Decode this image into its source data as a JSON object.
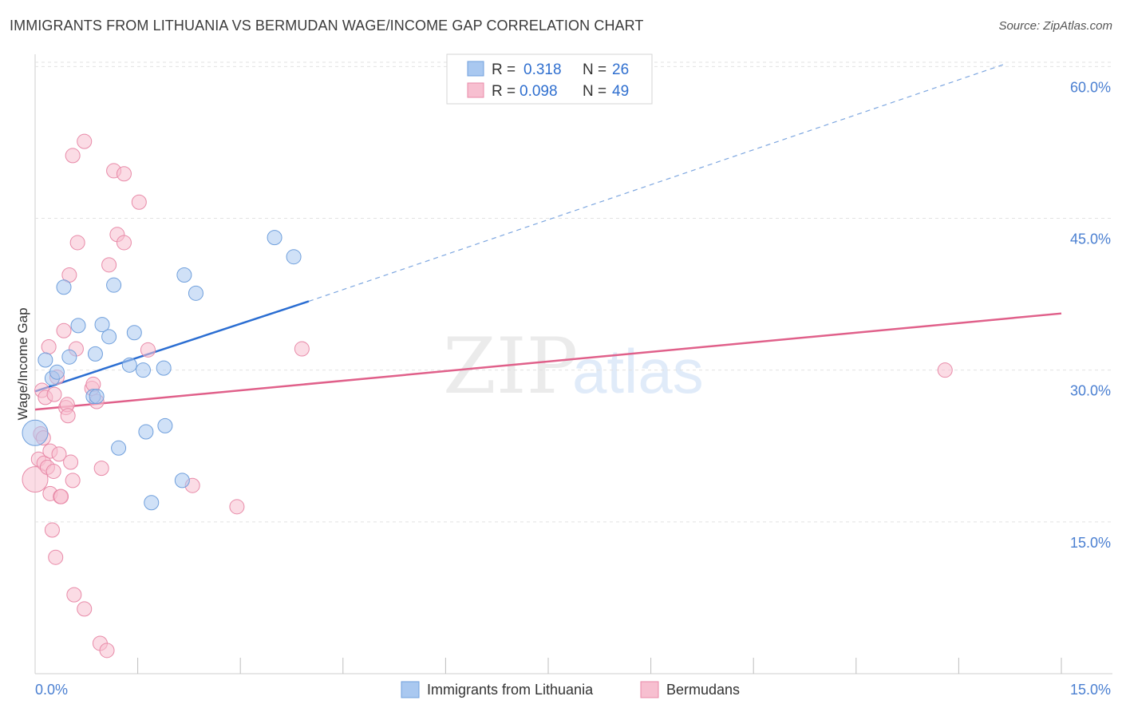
{
  "title": "IMMIGRANTS FROM LITHUANIA VS BERMUDAN WAGE/INCOME GAP CORRELATION CHART",
  "source": "Source: ZipAtlas.com",
  "chart_data": {
    "type": "scatter",
    "title": "IMMIGRANTS FROM LITHUANIA VS BERMUDAN WAGE/INCOME GAP CORRELATION CHART",
    "xlabel": "",
    "ylabel": "Wage/Income Gap",
    "xlim": [
      0,
      15
    ],
    "ylim": [
      0,
      62
    ],
    "x_tick_labels": [
      "0.0%",
      "15.0%"
    ],
    "y_ticks": [
      15,
      30,
      45,
      60
    ],
    "y_tick_labels": [
      "15.0%",
      "30.0%",
      "45.0%",
      "60.0%"
    ],
    "legend": {
      "entries": [
        {
          "r_label": "R =",
          "r": "0.318",
          "n_label": "N =",
          "n": "26"
        },
        {
          "r_label": "R =",
          "r": "0.098",
          "n_label": "N =",
          "n": "49"
        }
      ]
    },
    "series": [
      {
        "name": "Immigrants from Lithuania",
        "color": "#a9c8f0",
        "stroke": "#6f9fdc",
        "line_color": "#2b6ed2",
        "trend": {
          "x0": 0.0,
          "y0": 27.9,
          "x1": 4.0,
          "y1": 36.8,
          "dash_to_x": 14.2,
          "dash_to_y": 60.3
        },
        "points": [
          {
            "x": 0.0,
            "y": 23.8,
            "big": true
          },
          {
            "x": 0.15,
            "y": 31.0
          },
          {
            "x": 0.25,
            "y": 29.2
          },
          {
            "x": 0.32,
            "y": 29.8
          },
          {
            "x": 0.42,
            "y": 38.2
          },
          {
            "x": 0.5,
            "y": 31.3
          },
          {
            "x": 0.63,
            "y": 34.4
          },
          {
            "x": 0.85,
            "y": 27.4
          },
          {
            "x": 0.9,
            "y": 27.4
          },
          {
            "x": 0.88,
            "y": 31.6
          },
          {
            "x": 0.98,
            "y": 34.5
          },
          {
            "x": 1.08,
            "y": 33.3
          },
          {
            "x": 1.15,
            "y": 38.4
          },
          {
            "x": 1.22,
            "y": 22.3
          },
          {
            "x": 1.38,
            "y": 30.5
          },
          {
            "x": 1.45,
            "y": 33.7
          },
          {
            "x": 1.58,
            "y": 30.0
          },
          {
            "x": 1.62,
            "y": 23.9
          },
          {
            "x": 1.7,
            "y": 16.9
          },
          {
            "x": 1.9,
            "y": 24.5
          },
          {
            "x": 1.88,
            "y": 30.2
          },
          {
            "x": 2.15,
            "y": 19.1
          },
          {
            "x": 2.18,
            "y": 39.4
          },
          {
            "x": 2.35,
            "y": 37.6
          },
          {
            "x": 3.5,
            "y": 43.1
          },
          {
            "x": 3.78,
            "y": 41.2
          }
        ]
      },
      {
        "name": "Bermudans",
        "color": "#f7bfd0",
        "stroke": "#e88aa8",
        "line_color": "#e0608a",
        "trend": {
          "x0": 0.0,
          "y0": 26.1,
          "x1": 15.0,
          "y1": 35.6
        },
        "points": [
          {
            "x": 0.0,
            "y": 19.2,
            "big": true
          },
          {
            "x": 0.05,
            "y": 21.2
          },
          {
            "x": 0.08,
            "y": 23.7
          },
          {
            "x": 0.1,
            "y": 28.0
          },
          {
            "x": 0.12,
            "y": 23.3
          },
          {
            "x": 0.13,
            "y": 20.8
          },
          {
            "x": 0.15,
            "y": 27.3
          },
          {
            "x": 0.18,
            "y": 20.4
          },
          {
            "x": 0.2,
            "y": 32.3
          },
          {
            "x": 0.22,
            "y": 22.0
          },
          {
            "x": 0.22,
            "y": 17.8
          },
          {
            "x": 0.25,
            "y": 14.2
          },
          {
            "x": 0.27,
            "y": 20.0
          },
          {
            "x": 0.28,
            "y": 27.6
          },
          {
            "x": 0.3,
            "y": 11.5
          },
          {
            "x": 0.32,
            "y": 29.3
          },
          {
            "x": 0.35,
            "y": 21.7
          },
          {
            "x": 0.37,
            "y": 17.5
          },
          {
            "x": 0.38,
            "y": 17.5
          },
          {
            "x": 0.42,
            "y": 33.9
          },
          {
            "x": 0.45,
            "y": 26.3
          },
          {
            "x": 0.47,
            "y": 26.6
          },
          {
            "x": 0.48,
            "y": 25.5
          },
          {
            "x": 0.5,
            "y": 39.4
          },
          {
            "x": 0.52,
            "y": 20.9
          },
          {
            "x": 0.55,
            "y": 19.1
          },
          {
            "x": 0.55,
            "y": 51.2
          },
          {
            "x": 0.57,
            "y": 7.8
          },
          {
            "x": 0.6,
            "y": 32.1
          },
          {
            "x": 0.62,
            "y": 42.6
          },
          {
            "x": 0.72,
            "y": 52.6
          },
          {
            "x": 0.72,
            "y": 6.4
          },
          {
            "x": 0.83,
            "y": 28.2
          },
          {
            "x": 0.85,
            "y": 28.6
          },
          {
            "x": 0.9,
            "y": 26.9
          },
          {
            "x": 0.95,
            "y": 3.0
          },
          {
            "x": 0.97,
            "y": 20.3
          },
          {
            "x": 1.05,
            "y": 2.3
          },
          {
            "x": 1.08,
            "y": 40.4
          },
          {
            "x": 1.15,
            "y": 49.7
          },
          {
            "x": 1.2,
            "y": 43.4
          },
          {
            "x": 1.3,
            "y": 42.6
          },
          {
            "x": 1.3,
            "y": 49.4
          },
          {
            "x": 1.52,
            "y": 46.6
          },
          {
            "x": 1.65,
            "y": 32.0
          },
          {
            "x": 2.3,
            "y": 18.6
          },
          {
            "x": 2.95,
            "y": 16.5
          },
          {
            "x": 3.9,
            "y": 32.1
          },
          {
            "x": 13.3,
            "y": 30.0
          }
        ]
      }
    ]
  }
}
